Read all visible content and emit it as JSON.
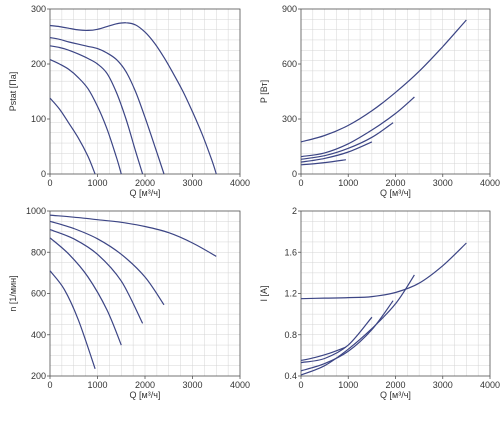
{
  "chart_data": [
    {
      "type": "line",
      "title": "",
      "xlabel": "Q [м³/ч]",
      "ylabel": "Pstat [Па]",
      "xlim": [
        0,
        4000
      ],
      "ylim": [
        0,
        300
      ],
      "xticks": [
        "0",
        "1000",
        "2000",
        "3000",
        "4000"
      ],
      "yticks": [
        "0",
        "100",
        "200",
        "300"
      ],
      "x_tick_values": [
        0,
        1000,
        2000,
        3000,
        4000
      ],
      "y_tick_values": [
        0,
        100,
        200,
        300
      ],
      "grid": true,
      "series": [
        {
          "x": [
            0,
            200,
            400,
            600,
            800,
            1000,
            1200,
            1400,
            1600,
            1800,
            2000,
            2200,
            2400,
            2600,
            2800,
            3000,
            3200,
            3400,
            3500
          ],
          "y": [
            270,
            268,
            265,
            262,
            261,
            263,
            268,
            273,
            275,
            271,
            258,
            238,
            212,
            182,
            150,
            113,
            73,
            27,
            0
          ]
        },
        {
          "x": [
            0,
            200,
            400,
            600,
            800,
            1000,
            1200,
            1400,
            1600,
            1800,
            2000,
            2200,
            2400
          ],
          "y": [
            248,
            245,
            240,
            236,
            232,
            228,
            220,
            208,
            186,
            150,
            103,
            52,
            0
          ]
        },
        {
          "x": [
            0,
            200,
            400,
            600,
            800,
            1000,
            1200,
            1400,
            1600,
            1800,
            1950
          ],
          "y": [
            233,
            230,
            225,
            218,
            210,
            200,
            183,
            148,
            100,
            42,
            0
          ]
        },
        {
          "x": [
            0,
            200,
            400,
            600,
            800,
            1000,
            1200,
            1400,
            1500
          ],
          "y": [
            208,
            200,
            190,
            175,
            155,
            123,
            82,
            30,
            0
          ]
        },
        {
          "x": [
            0,
            200,
            400,
            600,
            800,
            950
          ],
          "y": [
            138,
            118,
            92,
            65,
            32,
            0
          ]
        }
      ]
    },
    {
      "type": "line",
      "title": "",
      "xlabel": "Q [м³/ч]",
      "ylabel": "P [Вт]",
      "xlim": [
        0,
        4000
      ],
      "ylim": [
        0,
        900
      ],
      "xticks": [
        "0",
        "1000",
        "2000",
        "3000",
        "4000"
      ],
      "yticks": [
        "0",
        "300",
        "600",
        "900"
      ],
      "x_tick_values": [
        0,
        1000,
        2000,
        3000,
        4000
      ],
      "y_tick_values": [
        0,
        300,
        600,
        900
      ],
      "grid": true,
      "series": [
        {
          "x": [
            0,
            500,
            1000,
            1500,
            2000,
            2500,
            3000,
            3500
          ],
          "y": [
            175,
            210,
            265,
            345,
            445,
            560,
            695,
            840
          ]
        },
        {
          "x": [
            0,
            500,
            1000,
            1500,
            2000,
            2400
          ],
          "y": [
            95,
            115,
            165,
            240,
            330,
            420
          ]
        },
        {
          "x": [
            0,
            500,
            1000,
            1500,
            1950
          ],
          "y": [
            80,
            100,
            140,
            200,
            280
          ]
        },
        {
          "x": [
            0,
            500,
            1000,
            1500
          ],
          "y": [
            65,
            85,
            120,
            175
          ]
        },
        {
          "x": [
            0,
            500,
            950
          ],
          "y": [
            50,
            62,
            78
          ]
        }
      ]
    },
    {
      "type": "line",
      "title": "",
      "xlabel": "Q [м³/ч]",
      "ylabel": "n [1/мин]",
      "xlim": [
        0,
        4000
      ],
      "ylim": [
        200,
        1000
      ],
      "xticks": [
        "0",
        "1000",
        "2000",
        "3000",
        "4000"
      ],
      "yticks": [
        "200",
        "400",
        "600",
        "800",
        "1000"
      ],
      "x_tick_values": [
        0,
        1000,
        2000,
        3000,
        4000
      ],
      "y_tick_values": [
        200,
        400,
        600,
        800,
        1000
      ],
      "grid": true,
      "series": [
        {
          "x": [
            0,
            500,
            1000,
            1500,
            2000,
            2500,
            3000,
            3500
          ],
          "y": [
            980,
            970,
            958,
            945,
            925,
            895,
            845,
            780
          ]
        },
        {
          "x": [
            0,
            500,
            1000,
            1500,
            2000,
            2400
          ],
          "y": [
            950,
            915,
            865,
            790,
            680,
            545
          ]
        },
        {
          "x": [
            0,
            500,
            1000,
            1500,
            1950
          ],
          "y": [
            910,
            865,
            790,
            660,
            455
          ]
        },
        {
          "x": [
            0,
            400,
            800,
            1200,
            1500
          ],
          "y": [
            870,
            790,
            680,
            520,
            350
          ]
        },
        {
          "x": [
            0,
            300,
            600,
            950
          ],
          "y": [
            710,
            620,
            470,
            235
          ]
        }
      ]
    },
    {
      "type": "line",
      "title": "",
      "xlabel": "Q [м³/ч]",
      "ylabel": "I [A]",
      "xlim": [
        0,
        4000
      ],
      "ylim": [
        0.4,
        2
      ],
      "xticks": [
        "0",
        "1000",
        "2000",
        "3000",
        "4000"
      ],
      "yticks": [
        "0.4",
        "0.8",
        "1.2",
        "1.6",
        "2"
      ],
      "x_tick_values": [
        0,
        1000,
        2000,
        3000,
        4000
      ],
      "y_tick_values": [
        0.4,
        0.8,
        1.2,
        1.6,
        2
      ],
      "grid": true,
      "series": [
        {
          "x": [
            0,
            500,
            1000,
            1500,
            2000,
            2500,
            3000,
            3500
          ],
          "y": [
            1.15,
            1.155,
            1.16,
            1.17,
            1.21,
            1.3,
            1.47,
            1.69
          ]
        },
        {
          "x": [
            0,
            500,
            1000,
            1500,
            2000,
            2400
          ],
          "y": [
            0.41,
            0.5,
            0.66,
            0.86,
            1.1,
            1.38
          ]
        },
        {
          "x": [
            0,
            500,
            1000,
            1500,
            1950
          ],
          "y": [
            0.45,
            0.52,
            0.64,
            0.85,
            1.13
          ]
        },
        {
          "x": [
            0,
            500,
            1000,
            1500
          ],
          "y": [
            0.53,
            0.57,
            0.7,
            0.97
          ]
        },
        {
          "x": [
            0,
            300,
            600,
            950
          ],
          "y": [
            0.55,
            0.58,
            0.62,
            0.68
          ]
        }
      ]
    }
  ],
  "style": {
    "line_color": "#3c4585",
    "grid_color": "#d4d4d4",
    "axis_color": "#555555",
    "text_color": "#333333"
  }
}
